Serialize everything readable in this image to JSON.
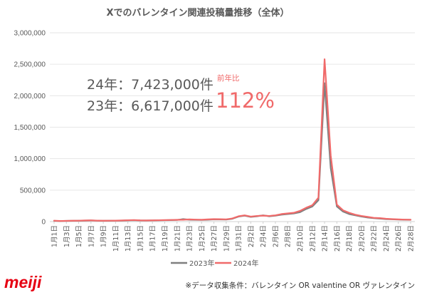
{
  "chart_data": {
    "type": "line",
    "title": "Xでのバレンタイン関連投稿量推移（全体）",
    "xlabel": "",
    "ylabel": "",
    "ylim": [
      0,
      3000000
    ],
    "grid": true,
    "y_ticks": [
      {
        "value": 0,
        "label": "0"
      },
      {
        "value": 500000,
        "label": "500,000"
      },
      {
        "value": 1000000,
        "label": "1,000,000"
      },
      {
        "value": 1500000,
        "label": "1,500,000"
      },
      {
        "value": 2000000,
        "label": "2,000,000"
      },
      {
        "value": 2500000,
        "label": "2,500,000"
      },
      {
        "value": 3000000,
        "label": "3,000,000"
      }
    ],
    "x_tick_step": 2,
    "x_tick_labels": [
      "1月1日",
      "1月3日",
      "1月5日",
      "1月7日",
      "1月9日",
      "1月11日",
      "1月13日",
      "1月15日",
      "1月17日",
      "1月19日",
      "1月21日",
      "1月23日",
      "1月25日",
      "1月27日",
      "1月29日",
      "1月31日",
      "2月2日",
      "2月4日",
      "2月6日",
      "2月8日",
      "2月10日",
      "2月12日",
      "2月14日",
      "2月16日",
      "2月18日",
      "2月20日",
      "2月22日",
      "2月24日",
      "2月26日",
      "2月28日"
    ],
    "series": [
      {
        "name": "2023年",
        "color": "#7f7f7f",
        "values": [
          12000,
          9000,
          11000,
          13000,
          14000,
          16000,
          18000,
          15000,
          13000,
          14000,
          15000,
          16000,
          20000,
          22000,
          18000,
          17000,
          19000,
          21000,
          22000,
          24000,
          26000,
          40000,
          30000,
          28000,
          26000,
          30000,
          35000,
          33000,
          32000,
          45000,
          80000,
          95000,
          75000,
          85000,
          100000,
          85000,
          95000,
          110000,
          120000,
          130000,
          150000,
          200000,
          240000,
          340000,
          2200000,
          850000,
          240000,
          160000,
          120000,
          100000,
          80000,
          65000,
          55000,
          48000,
          40000,
          36000,
          32000,
          30000,
          28000
        ]
      },
      {
        "name": "2024年",
        "color": "#f06a6a",
        "values": [
          15000,
          10000,
          12000,
          14000,
          15000,
          18000,
          20000,
          16000,
          14000,
          15000,
          16000,
          18000,
          22000,
          25000,
          20000,
          18000,
          20000,
          22000,
          24000,
          26000,
          28000,
          30000,
          35000,
          32000,
          30000,
          35000,
          40000,
          38000,
          36000,
          50000,
          85000,
          100000,
          80000,
          90000,
          95000,
          90000,
          100000,
          120000,
          130000,
          140000,
          170000,
          220000,
          260000,
          380000,
          2580000,
          1050000,
          270000,
          180000,
          140000,
          110000,
          90000,
          75000,
          60000,
          55000,
          45000,
          40000,
          35000,
          32000,
          30000
        ]
      }
    ]
  },
  "annotation": {
    "line_2024": "24年：7,423,000件",
    "line_2023": "23年：6,617,000件",
    "yoy_label": "前年比",
    "yoy_value": "112%"
  },
  "brand": {
    "logo_text": "meiji",
    "color": "#e60012"
  },
  "footer": {
    "note": "※データ収集条件：バレンタイン OR valentine OR ヴァレンタイン"
  }
}
